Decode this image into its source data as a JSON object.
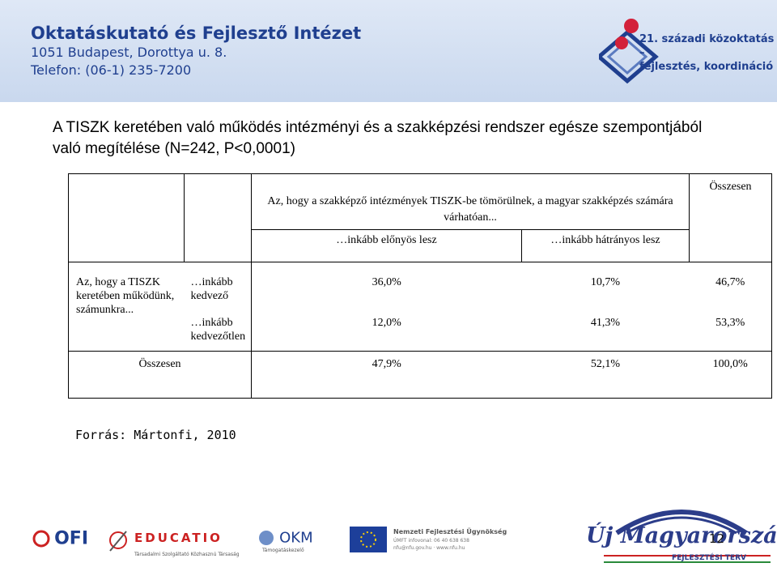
{
  "header": {
    "institute_name": "Oktatáskutató és Fejlesztő Intézet",
    "address": "1051 Budapest, Dorottya u. 8.",
    "phone": "Telefon: (06-1) 235-7200",
    "brand_badge_line1": "21. századi közoktatás –",
    "brand_badge_line2": "fejlesztés, koordináció"
  },
  "slide": {
    "title": "A TISZK keretében való működés intézményi és a szakképzési rendszer egésze szempontjából való megítélése (N=242, P<0,0001)",
    "source": "Forrás: Mártonfi, 2010",
    "page_number": "12"
  },
  "table": {
    "col_group_header": "Az, hogy a szakképző intézmények TISZK-be tömörülnek, a magyar szakképzés számára várhatóan...",
    "col_total_header": "Összesen",
    "col_headers": [
      "…inkább előnyös lesz",
      "…inkább hátrányos lesz"
    ],
    "row_group_header": "Az, hogy a TISZK keretében működünk, számunkra...",
    "rows": [
      {
        "label": "…inkább kedvező",
        "values": [
          "36,0%",
          "10,7%",
          "46,7%"
        ]
      },
      {
        "label": "…inkább kedvezőtlen",
        "values": [
          "12,0%",
          "41,3%",
          "53,3%"
        ]
      }
    ],
    "total_row": {
      "label": "Összesen",
      "values": [
        "47,9%",
        "52,1%",
        "100,0%"
      ]
    }
  },
  "footer": {
    "logo_ofi": "OFI",
    "logo_educatio": "EDUCATIO",
    "logo_educatio_sub": "Társadalmi Szolgáltató Közhasznú Társaság",
    "logo_okm": "OKM",
    "logo_okm_sub": "Támogatáskezelő",
    "logo_nfu": "Nemzeti Fejlesztési Ügynökség",
    "logo_nfu_sub1": "ÚMFT infovonal: 06 40 638 638",
    "logo_nfu_sub2": "nfu@nfu.gov.hu · www.nfu.hu",
    "logo_umft": "Új Magyarország",
    "logo_umft_sub": "FEJLESZTÉSI TERV"
  },
  "colors": {
    "brand_blue": "#1f3f8f",
    "brand_red": "#d3213a",
    "header_bg": "#d6e2f3"
  }
}
